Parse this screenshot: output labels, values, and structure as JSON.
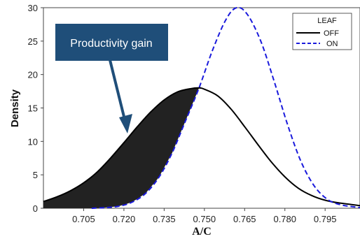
{
  "chart_data": {
    "type": "line",
    "xlabel": "A/C",
    "ylabel": "Density",
    "xlim": [
      0.69,
      0.808
    ],
    "ylim": [
      0,
      30
    ],
    "xticks": [
      "0.705",
      "0.720",
      "0.735",
      "0.750",
      "0.765",
      "0.780",
      "0.795"
    ],
    "yticks": [
      "0",
      "5",
      "10",
      "15",
      "20",
      "25",
      "30"
    ],
    "legend": {
      "title": "LEAF",
      "placement": "top-right",
      "entries": [
        "OFF",
        "ON"
      ]
    },
    "series": [
      {
        "name": "OFF",
        "color": "#000000",
        "dash": "solid",
        "x": [
          0.69,
          0.695,
          0.7,
          0.705,
          0.71,
          0.715,
          0.72,
          0.725,
          0.73,
          0.735,
          0.74,
          0.745,
          0.748,
          0.75,
          0.755,
          0.76,
          0.765,
          0.77,
          0.775,
          0.78,
          0.785,
          0.79,
          0.795,
          0.8,
          0.808
        ],
        "y": [
          1.0,
          1.7,
          2.6,
          3.8,
          5.4,
          7.5,
          9.8,
          12.2,
          14.4,
          16.2,
          17.4,
          17.9,
          18.0,
          17.8,
          16.8,
          14.8,
          12.2,
          9.5,
          6.9,
          4.7,
          3.0,
          1.9,
          1.2,
          0.8,
          0.4
        ]
      },
      {
        "name": "ON",
        "color": "#1a1adc",
        "dash": "dashed",
        "x": [
          0.708,
          0.713,
          0.718,
          0.723,
          0.728,
          0.733,
          0.738,
          0.743,
          0.748,
          0.753,
          0.758,
          0.762,
          0.766,
          0.771,
          0.776,
          0.781,
          0.786,
          0.791,
          0.796,
          0.801,
          0.808
        ],
        "y": [
          0.0,
          0.1,
          0.3,
          0.9,
          2.2,
          4.6,
          8.3,
          13.1,
          18.0,
          23.6,
          28.2,
          30.0,
          29.0,
          25.0,
          19.0,
          12.5,
          7.0,
          3.3,
          1.3,
          0.5,
          0.1
        ]
      }
    ],
    "annotations": [
      {
        "text": "Productivity gain",
        "type": "callout-arrow",
        "target": "shaded area between OFF and ON curves"
      }
    ]
  },
  "colors": {
    "callout_bg": "#1f4e79",
    "arrow": "#1f4e79",
    "shade": "#222222"
  }
}
